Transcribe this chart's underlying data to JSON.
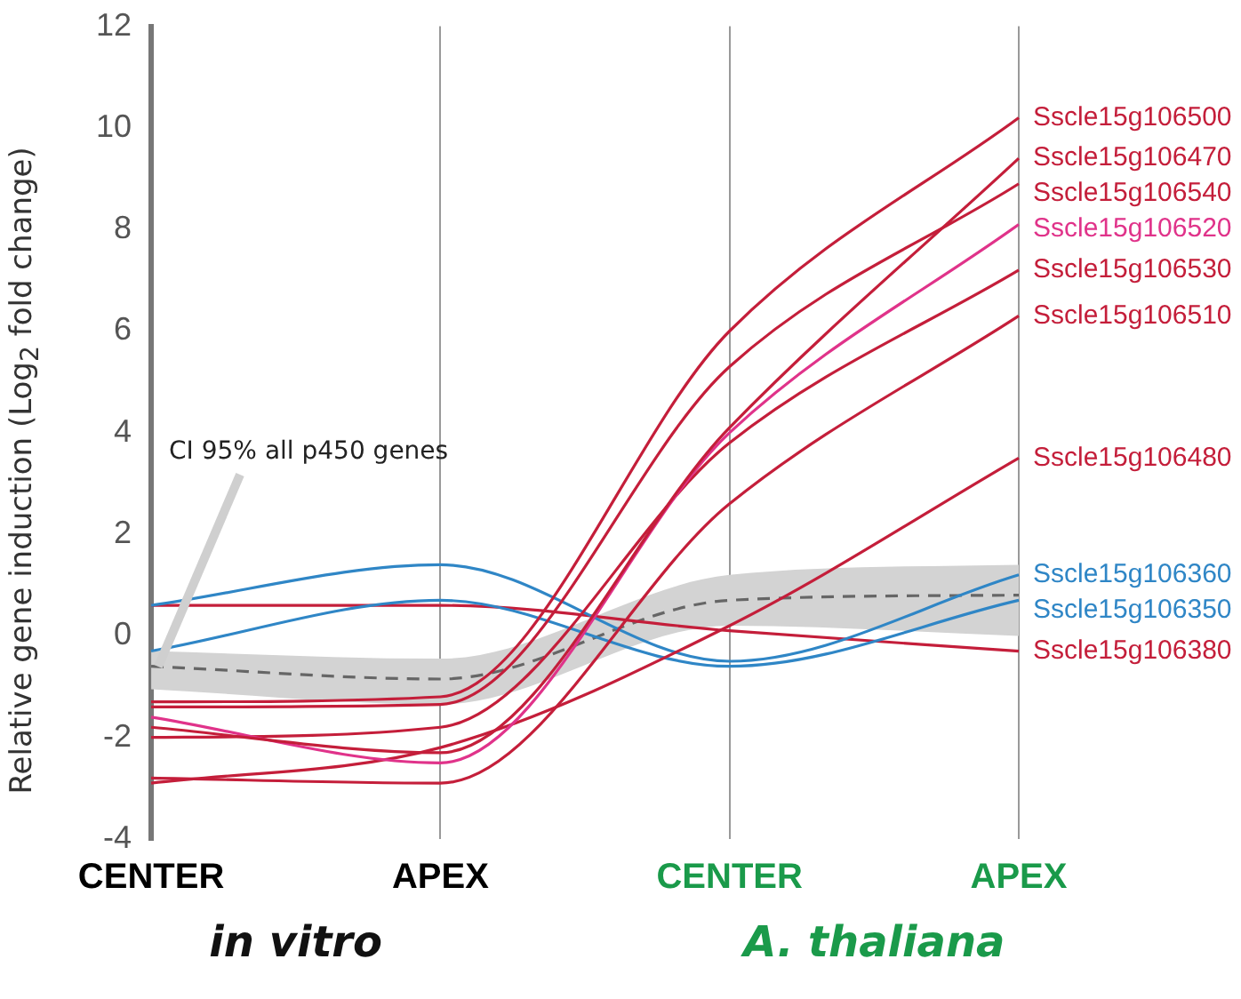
{
  "chart_data": {
    "type": "line",
    "ylabel": "Relative gene induction (Log$_{2}$ fold change)",
    "categories": [
      "CENTER",
      "APEX",
      "CENTER",
      "APEX"
    ],
    "ylim": [
      -4,
      12
    ],
    "yticks": [
      -4,
      -2,
      0,
      2,
      4,
      6,
      8,
      10,
      12
    ],
    "grid": "x",
    "legend": false,
    "marker": "none",
    "annotations": [
      {
        "text": "CI 95% all p450 genes",
        "x": "CENTER",
        "y": -0.6
      },
      "in vitro",
      "A. thaliana"
    ],
    "series": [
      {
        "name": "Sscle15g106500",
        "color": "#c41e3a",
        "values": [
          -1.3,
          -1.2,
          6.0,
          10.2
        ]
      },
      {
        "name": "Sscle15g106470",
        "color": "#c41e3a",
        "values": [
          -1.8,
          -2.3,
          4.1,
          9.4
        ]
      },
      {
        "name": "Sscle15g106540",
        "color": "#c41e3a",
        "values": [
          -1.4,
          -1.35,
          5.3,
          8.9
        ]
      },
      {
        "name": "Sscle15g106520",
        "color": "#e0338a",
        "values": [
          -1.6,
          -2.5,
          4.0,
          8.1
        ]
      },
      {
        "name": "Sscle15g106530",
        "color": "#c41e3a",
        "values": [
          -2.0,
          -1.8,
          3.8,
          7.2
        ]
      },
      {
        "name": "Sscle15g106510",
        "color": "#c41e3a",
        "values": [
          -2.8,
          -2.9,
          2.6,
          6.3
        ]
      },
      {
        "name": "Sscle15g106480",
        "color": "#c41e3a",
        "values": [
          -2.9,
          -2.2,
          0.2,
          3.5
        ]
      },
      {
        "name": "Sscle15g106360",
        "color": "#2f86c6",
        "values": [
          0.6,
          1.4,
          -0.5,
          1.2
        ]
      },
      {
        "name": "Sscle15g106350",
        "color": "#2f86c6",
        "values": [
          -0.3,
          0.7,
          -0.6,
          0.7
        ]
      },
      {
        "name": "Sscle15g106380",
        "color": "#c41e3a",
        "values": [
          0.6,
          0.6,
          0.1,
          -0.3
        ]
      },
      {
        "color": "#666666",
        "line_style": "dashed",
        "values": [
          -0.6,
          -0.85,
          0.7,
          0.8
        ],
        "lower": [
          -1.05,
          -1.35,
          0.2,
          0.0
        ],
        "upper": [
          -0.3,
          -0.45,
          1.2,
          1.4
        ]
      }
    ]
  }
}
